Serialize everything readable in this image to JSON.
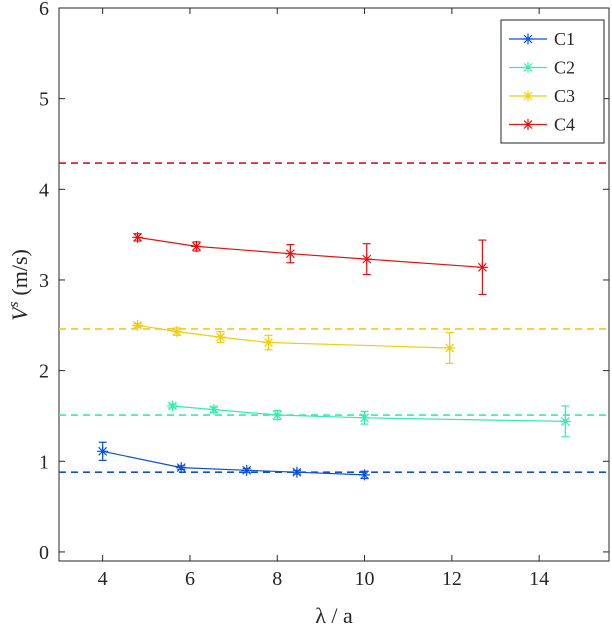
{
  "chart_data": {
    "type": "line",
    "title": "",
    "xlabel": "λ / a",
    "ylabel": "V^s (m/s)",
    "ylabel_parts": {
      "base": "V",
      "sup": "s",
      "unit": "(m/s)"
    },
    "xlim": [
      3,
      15.6
    ],
    "ylim": [
      -0.1,
      6.0
    ],
    "xticks": [
      4,
      6,
      8,
      10,
      12,
      14
    ],
    "yticks": [
      0,
      1,
      2,
      3,
      4,
      5,
      6
    ],
    "grid": false,
    "legend_position": "top-right",
    "series": [
      {
        "name": "C1",
        "color": "#0a4fe0",
        "marker": "asterisk",
        "x": [
          4.0,
          5.8,
          7.3,
          8.45,
          10.0
        ],
        "y": [
          1.11,
          0.93,
          0.9,
          0.88,
          0.85
        ],
        "err": [
          0.1,
          0.02,
          0.02,
          0.02,
          0.04
        ],
        "reference": 0.88
      },
      {
        "name": "C2",
        "color": "#33eeaa",
        "marker": "asterisk",
        "x": [
          5.6,
          6.55,
          8.0,
          10.0,
          14.6
        ],
        "y": [
          1.61,
          1.57,
          1.51,
          1.48,
          1.44
        ],
        "err": [
          0.02,
          0.03,
          0.05,
          0.07,
          0.17
        ],
        "reference": 1.51
      },
      {
        "name": "C3",
        "color": "#f2cc0c",
        "marker": "asterisk",
        "x": [
          4.8,
          5.7,
          6.7,
          7.8,
          11.95
        ],
        "y": [
          2.5,
          2.43,
          2.37,
          2.31,
          2.25
        ],
        "err": [
          0.02,
          0.04,
          0.06,
          0.08,
          0.17
        ],
        "reference": 2.46
      },
      {
        "name": "C4",
        "color": "#e81010",
        "marker": "asterisk",
        "x": [
          4.8,
          6.15,
          8.3,
          10.05,
          12.7
        ],
        "y": [
          3.47,
          3.37,
          3.29,
          3.23,
          3.14
        ],
        "err": [
          0.04,
          0.05,
          0.1,
          0.17,
          0.3
        ],
        "reference": 4.29
      }
    ]
  }
}
